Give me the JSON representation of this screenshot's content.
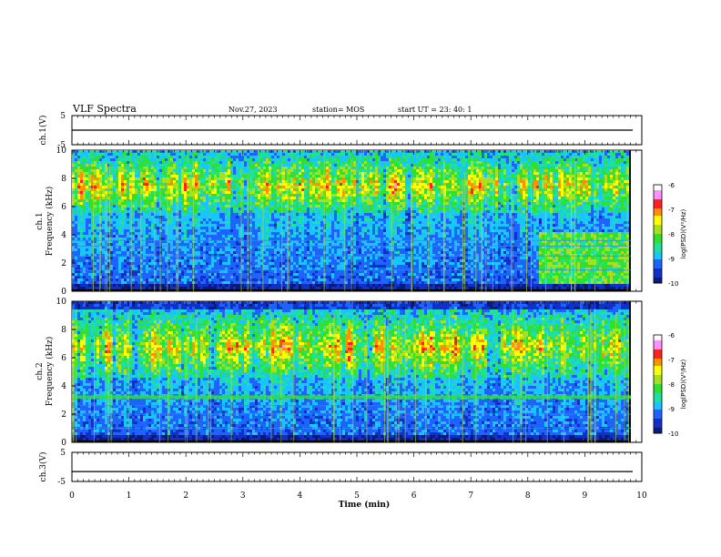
{
  "header": {
    "title": "VLF Spectra",
    "date": "Nov.27, 2023",
    "station": "station= MOS",
    "start": "start  UT =   23: 40: 1"
  },
  "colors": {
    "colormap": [
      "#000000",
      "#0a1a7a",
      "#1030c8",
      "#1f63ff",
      "#19c4ff",
      "#20e0a0",
      "#30e030",
      "#a8e020",
      "#ffff00",
      "#ff9000",
      "#ff2020",
      "#ff90ff",
      "#ffffff"
    ],
    "panel_background": "#000000",
    "hline": "#2a88ff",
    "vline": "#c8e800"
  },
  "chart_data": [
    {
      "type": "line",
      "name": "ch1-waveform",
      "ylabel": "ch.1(V)",
      "ylim": [
        -5,
        5
      ],
      "yticks": [
        "5",
        "-5"
      ],
      "xlim": [
        0,
        10
      ],
      "x": [
        0,
        10
      ],
      "y": [
        0,
        0
      ]
    },
    {
      "type": "heatmap",
      "name": "ch1-spectrogram",
      "ylabel": "ch.1\nFrequency (kHz)",
      "ylabel_line1": "ch.1",
      "ylabel_line2": "Frequency (kHz)",
      "ylim": [
        0,
        10
      ],
      "yticks": [
        "0",
        "2",
        "4",
        "6",
        "8",
        "10"
      ],
      "xlim": [
        0,
        9.8
      ],
      "colorbar": {
        "label": "log(PSD)(V²/Hz)",
        "range": [
          -10,
          -6
        ],
        "ticks": [
          "-6",
          "-7",
          "-8",
          "-9",
          "-10"
        ]
      },
      "features": {
        "tweek_band_kHz": [
          5.5,
          9.5
        ],
        "horizontal_lines_kHz": [
          1.5,
          2.5,
          3.2,
          3.6
        ],
        "bright_block_start_min": 8.15,
        "bright_block_kHz": [
          0.5,
          4.2
        ]
      }
    },
    {
      "type": "heatmap",
      "name": "ch2-spectrogram",
      "ylabel_line1": "ch.2",
      "ylabel_line2": "Frequency (kHz)",
      "ylim": [
        0,
        10
      ],
      "yticks": [
        "0",
        "2",
        "4",
        "6",
        "8",
        "10"
      ],
      "xlim": [
        0,
        9.8
      ],
      "colorbar": {
        "label": "log(PSD)(V²/Hz)",
        "range": [
          -10,
          -6
        ],
        "ticks": [
          "-6",
          "-7",
          "-8",
          "-9",
          "-10"
        ]
      },
      "features": {
        "tweek_band_kHz": [
          4.5,
          9.0
        ],
        "strong_line_kHz": 3.2,
        "horizontal_lines_kHz": [
          1.0,
          2.0,
          2.6,
          3.2
        ]
      }
    },
    {
      "type": "line",
      "name": "ch3-waveform",
      "ylabel": "ch.3(V)",
      "ylim": [
        -5,
        5
      ],
      "yticks": [
        "5",
        "-5"
      ],
      "xlim": [
        0,
        10
      ],
      "x": [
        0,
        10
      ],
      "y": [
        -1.6,
        -1.6
      ]
    }
  ],
  "xaxis": {
    "label": "Time  (min)",
    "ticks": [
      "0",
      "1",
      "2",
      "3",
      "4",
      "5",
      "6",
      "7",
      "8",
      "9",
      "10"
    ],
    "range": [
      0,
      10
    ]
  }
}
